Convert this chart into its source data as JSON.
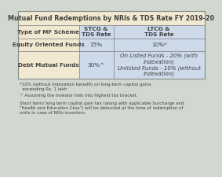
{
  "title": "Mutual Fund Redemptions by NRIs & TDS Rate FY 2019-20",
  "title_bg": "#f0e8d0",
  "header_bg": "#f0e8d0",
  "col1_header": "Type of MF Scheme",
  "col2_header": "STCG &\nTDS Rate",
  "col3_header": "LTCG &\nTDS Rate",
  "row1_label": "Equity Oriented Funds",
  "row1_col2": "15%",
  "row1_col3": "10%*",
  "row2_label": "Debt Mutual Funds",
  "row2_col2": "30%^",
  "row2_col3": "On Listed Funds - 20% (with\nindexation)\nUnlisted Funds - 10% (without\nindexation)",
  "row1_label_bg": "#f0e8d0",
  "row2_label_bg": "#f0e8d0",
  "data_cell_bg": "#cddaea",
  "footnote1": "*10% (without indexation benefit) on long-term capital gains\n  exceeding Rs. 1 lakh",
  "footnote2": "^ Assuming the investor falls into highest tax bracket.",
  "footnote3": "Short term/ long term capital gain tax (along with applicable Surcharge and\n\"Health and Education Cess\") will be deducted at the time of redemption of\nunits in case of NRIs investors.",
  "outer_bg": "#d0d8d0",
  "border_color": "#888888",
  "text_color": "#404040",
  "font_size_title": 5.8,
  "font_size_header": 5.2,
  "font_size_cell": 5.2,
  "font_size_footnote": 4.0
}
